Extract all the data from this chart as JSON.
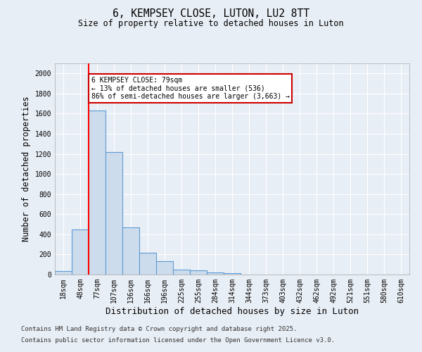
{
  "title1": "6, KEMPSEY CLOSE, LUTON, LU2 8TT",
  "title2": "Size of property relative to detached houses in Luton",
  "xlabel": "Distribution of detached houses by size in Luton",
  "ylabel": "Number of detached properties",
  "bar_color": "#cddcec",
  "bar_edge_color": "#5b9bd5",
  "categories": [
    "18sqm",
    "48sqm",
    "77sqm",
    "107sqm",
    "136sqm",
    "166sqm",
    "196sqm",
    "225sqm",
    "255sqm",
    "284sqm",
    "314sqm",
    "344sqm",
    "373sqm",
    "403sqm",
    "432sqm",
    "462sqm",
    "492sqm",
    "521sqm",
    "551sqm",
    "580sqm",
    "610sqm"
  ],
  "values": [
    35,
    450,
    1630,
    1220,
    470,
    220,
    130,
    50,
    40,
    20,
    15,
    0,
    0,
    0,
    0,
    0,
    0,
    0,
    0,
    0,
    0
  ],
  "red_line_index": 2,
  "annotation_text": "6 KEMPSEY CLOSE: 79sqm\n← 13% of detached houses are smaller (536)\n86% of semi-detached houses are larger (3,663) →",
  "annotation_border_color": "#cc0000",
  "ylim": [
    0,
    2100
  ],
  "yticks": [
    0,
    200,
    400,
    600,
    800,
    1000,
    1200,
    1400,
    1600,
    1800,
    2000
  ],
  "footnote1": "Contains HM Land Registry data © Crown copyright and database right 2025.",
  "footnote2": "Contains public sector information licensed under the Open Government Licence v3.0.",
  "background_color": "#e8eef5",
  "plot_bg_color": "#e8eef5",
  "grid_color": "#ffffff"
}
